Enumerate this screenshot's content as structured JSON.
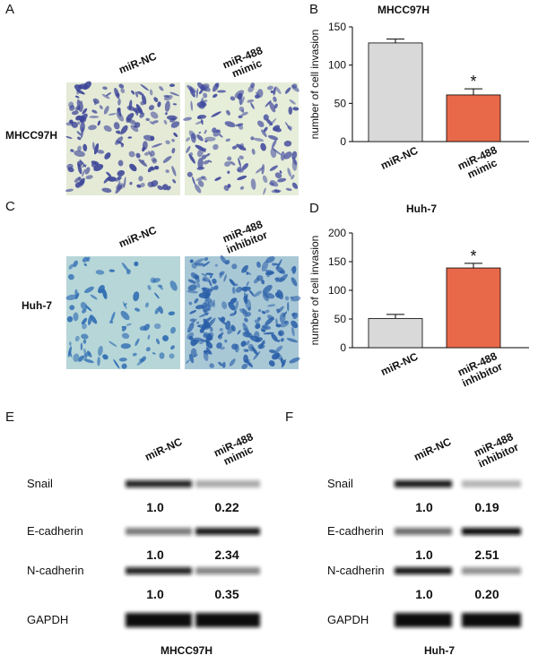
{
  "panels": {
    "a": {
      "label": "A",
      "columns": [
        [
          "miR-NC"
        ],
        [
          "miR-488",
          "mimic"
        ]
      ],
      "row": "MHCC97H"
    },
    "b": {
      "label": "B",
      "chart_data": {
        "type": "bar",
        "title": "MHCC97H",
        "y_label": "number of cell invasion",
        "categories": [
          [
            "miR-NC"
          ],
          [
            "miR-488",
            "mimic"
          ]
        ],
        "values": [
          129,
          61
        ],
        "errors": [
          5,
          8
        ],
        "colors": [
          "#d9d9d9",
          "#e8694a"
        ],
        "significance": [
          null,
          "*"
        ],
        "ylim": [
          0,
          150
        ],
        "yticks": [
          0,
          50,
          100,
          150
        ]
      }
    },
    "c": {
      "label": "C",
      "columns": [
        [
          "miR-NC"
        ],
        [
          "miR-488",
          "inhibitor"
        ]
      ],
      "row": "Huh-7"
    },
    "d": {
      "label": "D",
      "chart_data": {
        "type": "bar",
        "title": "Huh-7",
        "y_label": "number of cell invasion",
        "categories": [
          [
            "miR-NC"
          ],
          [
            "miR-488",
            "inhibitor"
          ]
        ],
        "values": [
          51,
          139
        ],
        "errors": [
          7,
          8
        ],
        "colors": [
          "#d9d9d9",
          "#e8694a"
        ],
        "significance": [
          null,
          "*"
        ],
        "ylim": [
          0,
          200
        ],
        "yticks": [
          0,
          50,
          100,
          150,
          200
        ]
      }
    },
    "e": {
      "label": "E",
      "columns": [
        [
          "miR-NC"
        ],
        [
          "miR-488",
          "mimic"
        ]
      ],
      "rows": [
        {
          "name": "Snail",
          "quant": [
            "1.0",
            "0.22"
          ]
        },
        {
          "name": "E-cadherin",
          "quant": [
            "1.0",
            "2.34"
          ]
        },
        {
          "name": "N-cadherin",
          "quant": [
            "1.0",
            "0.35"
          ]
        },
        {
          "name": "GAPDH"
        }
      ],
      "footer": "MHCC97H"
    },
    "f": {
      "label": "F",
      "columns": [
        [
          "miR-NC"
        ],
        [
          "miR-488",
          "inhibitor"
        ]
      ],
      "rows": [
        {
          "name": "Snail",
          "quant": [
            "1.0",
            "0.19"
          ]
        },
        {
          "name": "E-cadherin",
          "quant": [
            "1.0",
            "2.51"
          ]
        },
        {
          "name": "N-cadherin",
          "quant": [
            "1.0",
            "0.20"
          ]
        },
        {
          "name": "GAPDH"
        }
      ],
      "footer": "Huh-7"
    }
  }
}
